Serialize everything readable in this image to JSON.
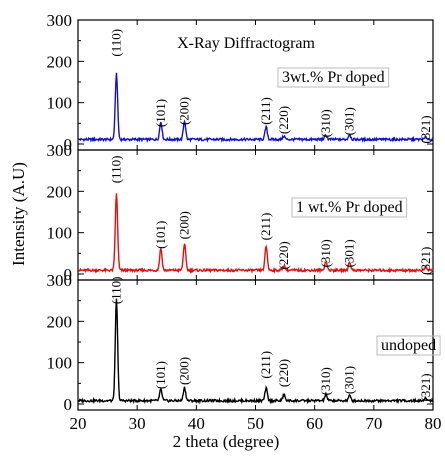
{
  "chart_data": {
    "type": "line",
    "title": "X-Ray Diffractogram",
    "xlabel": "2 theta (degree)",
    "ylabel": "Intensity (A.U)",
    "xlim": [
      20,
      80
    ],
    "x_ticks": [
      "20",
      "30",
      "40",
      "50",
      "60",
      "70",
      "80"
    ],
    "ylim": [
      0,
      300
    ],
    "y_ticks": [
      "0",
      "100",
      "200",
      "300"
    ],
    "peak_labels": [
      {
        "label": "(110)",
        "two_theta": 26.5
      },
      {
        "label": "(101)",
        "two_theta": 34.0
      },
      {
        "label": "(200)",
        "two_theta": 38.0
      },
      {
        "label": "(211)",
        "two_theta": 51.8
      },
      {
        "label": "(220)",
        "two_theta": 54.8
      },
      {
        "label": "(310)",
        "two_theta": 61.9
      },
      {
        "label": "(301)",
        "two_theta": 65.9
      },
      {
        "label": "(321)",
        "two_theta": 78.8
      }
    ],
    "panels": [
      {
        "name": "3wt.% Pr doped",
        "color": "#1010d0",
        "baseline": 8,
        "peak_heights": [
          160,
          43,
          45,
          30,
          8,
          10,
          12,
          5
        ],
        "peak_label_y": [
          245,
          75,
          80,
          80,
          58,
          50,
          55,
          35
        ]
      },
      {
        "name": "1 wt.% Pr doped",
        "color": "#e01010",
        "baseline": 6,
        "peak_heights": [
          185,
          53,
          65,
          58,
          12,
          22,
          20,
          7
        ],
        "peak_label_y": [
          253,
          95,
          118,
          115,
          45,
          50,
          50,
          32
        ]
      },
      {
        "name": "undoped",
        "color": "#000000",
        "baseline": 5,
        "peak_heights": [
          245,
          27,
          32,
          30,
          14,
          15,
          12,
          6
        ],
        "peak_label_y": [
          275,
          70,
          80,
          95,
          75,
          55,
          58,
          40
        ]
      }
    ]
  }
}
